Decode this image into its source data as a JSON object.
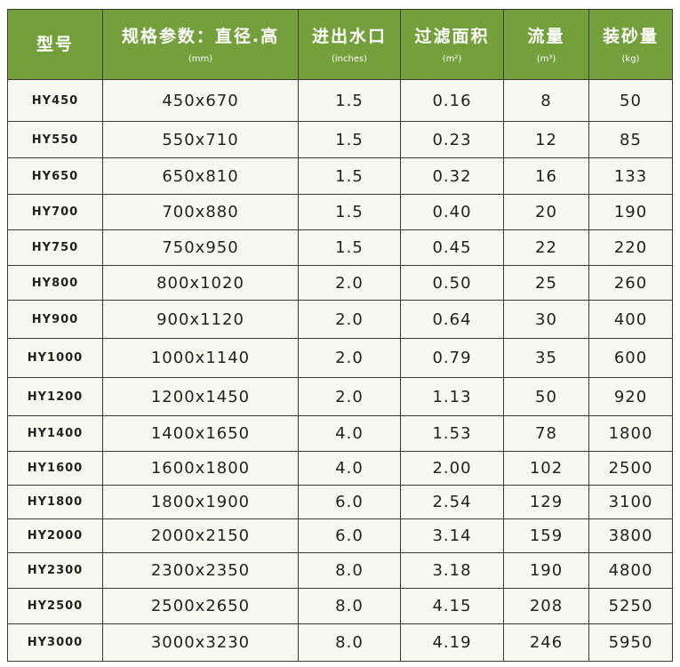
{
  "header_color": "#73a03a",
  "columns": [
    {
      "title": "型号",
      "unit": ""
    },
    {
      "title": "规格参数：直径.高",
      "unit": "(mm)"
    },
    {
      "title": "进出水口",
      "unit": "(inches)"
    },
    {
      "title": "过滤面积",
      "unit": "(m²)"
    },
    {
      "title": "流量",
      "unit": "(m³)"
    },
    {
      "title": "装砂量",
      "unit": "(kg)"
    }
  ],
  "rows": [
    [
      "HY450",
      "450x670",
      "1.5",
      "0.16",
      "8",
      "50"
    ],
    [
      "HY550",
      "550x710",
      "1.5",
      "0.23",
      "12",
      "85"
    ],
    [
      "HY650",
      "650x810",
      "1.5",
      "0.32",
      "16",
      "133"
    ],
    [
      "HY700",
      "700x880",
      "1.5",
      "0.40",
      "20",
      "190"
    ],
    [
      "HY750",
      "750x950",
      "1.5",
      "0.45",
      "22",
      "220"
    ],
    [
      "HY800",
      "800x1020",
      "2.0",
      "0.50",
      "25",
      "260"
    ],
    [
      "HY900",
      "900x1120",
      "2.0",
      "0.64",
      "30",
      "400"
    ],
    [
      "HY1000",
      "1000x1140",
      "2.0",
      "0.79",
      "35",
      "600"
    ],
    [
      "HY1200",
      "1200x1450",
      "2.0",
      "1.13",
      "50",
      "920"
    ],
    [
      "HY1400",
      "1400x1650",
      "4.0",
      "1.53",
      "78",
      "1800"
    ],
    [
      "HY1600",
      "1600x1800",
      "4.0",
      "2.00",
      "102",
      "2500"
    ],
    [
      "HY1800",
      "1800x1900",
      "6.0",
      "2.54",
      "129",
      "3100"
    ],
    [
      "HY2000",
      "2000x2150",
      "6.0",
      "3.14",
      "159",
      "3800"
    ],
    [
      "HY2300",
      "2300x2350",
      "8.0",
      "3.18",
      "190",
      "4800"
    ],
    [
      "HY2500",
      "2500x2650",
      "8.0",
      "4.15",
      "208",
      "5250"
    ],
    [
      "HY3000",
      "3000x3230",
      "8.0",
      "4.19",
      "246",
      "5950"
    ]
  ]
}
